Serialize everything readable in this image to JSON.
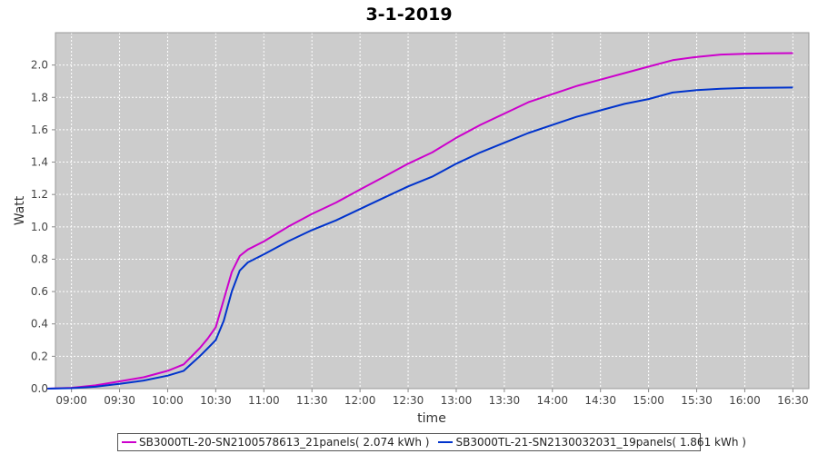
{
  "chart_data": {
    "type": "line",
    "title": "3-1-2019",
    "xlabel": "time",
    "ylabel": "Watt",
    "x_tick_labels": [
      "09:00",
      "09:30",
      "10:00",
      "10:30",
      "11:00",
      "11:30",
      "12:00",
      "12:30",
      "13:00",
      "13:30",
      "14:00",
      "14:30",
      "15:00",
      "15:30",
      "16:00",
      "16:30"
    ],
    "y_tick_labels": [
      "0.0",
      "0.2",
      "0.4",
      "0.6",
      "0.8",
      "1.0",
      "1.2",
      "1.4",
      "1.6",
      "1.8",
      "2.0"
    ],
    "xlim": [
      "08:50",
      "16:40"
    ],
    "ylim": [
      0,
      2.2
    ],
    "grid": true,
    "legend_position": "bottom",
    "background_color": "#cccccc",
    "series": [
      {
        "name": "SB3000TL-20-SN2100578613_21panels( 2.074 kWh )",
        "color": "#cc00cc",
        "points": [
          [
            "08:45",
            0.0
          ],
          [
            "09:00",
            0.005
          ],
          [
            "09:15",
            0.02
          ],
          [
            "09:30",
            0.045
          ],
          [
            "09:45",
            0.07
          ],
          [
            "10:00",
            0.11
          ],
          [
            "10:10",
            0.15
          ],
          [
            "10:20",
            0.25
          ],
          [
            "10:25",
            0.31
          ],
          [
            "10:30",
            0.38
          ],
          [
            "10:35",
            0.55
          ],
          [
            "10:40",
            0.72
          ],
          [
            "10:45",
            0.82
          ],
          [
            "10:50",
            0.86
          ],
          [
            "11:00",
            0.91
          ],
          [
            "11:15",
            1.0
          ],
          [
            "11:30",
            1.08
          ],
          [
            "11:45",
            1.15
          ],
          [
            "12:00",
            1.23
          ],
          [
            "12:15",
            1.31
          ],
          [
            "12:30",
            1.39
          ],
          [
            "12:45",
            1.46
          ],
          [
            "13:00",
            1.55
          ],
          [
            "13:15",
            1.63
          ],
          [
            "13:30",
            1.7
          ],
          [
            "13:45",
            1.77
          ],
          [
            "14:00",
            1.82
          ],
          [
            "14:15",
            1.87
          ],
          [
            "14:30",
            1.91
          ],
          [
            "14:45",
            1.95
          ],
          [
            "15:00",
            1.99
          ],
          [
            "15:15",
            2.03
          ],
          [
            "15:30",
            2.05
          ],
          [
            "15:45",
            2.065
          ],
          [
            "16:00",
            2.07
          ],
          [
            "16:15",
            2.072
          ],
          [
            "16:30",
            2.074
          ]
        ]
      },
      {
        "name": "SB3000TL-21-SN2130032031_19panels( 1.861 kWh )",
        "color": "#0033cc",
        "points": [
          [
            "08:45",
            0.0
          ],
          [
            "09:00",
            0.003
          ],
          [
            "09:15",
            0.012
          ],
          [
            "09:30",
            0.03
          ],
          [
            "09:45",
            0.05
          ],
          [
            "10:00",
            0.08
          ],
          [
            "10:10",
            0.11
          ],
          [
            "10:20",
            0.2
          ],
          [
            "10:25",
            0.25
          ],
          [
            "10:30",
            0.3
          ],
          [
            "10:35",
            0.42
          ],
          [
            "10:40",
            0.6
          ],
          [
            "10:45",
            0.73
          ],
          [
            "10:50",
            0.78
          ],
          [
            "11:00",
            0.83
          ],
          [
            "11:15",
            0.91
          ],
          [
            "11:30",
            0.98
          ],
          [
            "11:45",
            1.04
          ],
          [
            "12:00",
            1.11
          ],
          [
            "12:15",
            1.18
          ],
          [
            "12:30",
            1.25
          ],
          [
            "12:45",
            1.31
          ],
          [
            "13:00",
            1.39
          ],
          [
            "13:15",
            1.46
          ],
          [
            "13:30",
            1.52
          ],
          [
            "13:45",
            1.58
          ],
          [
            "14:00",
            1.63
          ],
          [
            "14:15",
            1.68
          ],
          [
            "14:30",
            1.72
          ],
          [
            "14:45",
            1.76
          ],
          [
            "15:00",
            1.79
          ],
          [
            "15:15",
            1.83
          ],
          [
            "15:30",
            1.845
          ],
          [
            "15:45",
            1.853
          ],
          [
            "16:00",
            1.858
          ],
          [
            "16:15",
            1.86
          ],
          [
            "16:30",
            1.861
          ]
        ]
      }
    ]
  }
}
